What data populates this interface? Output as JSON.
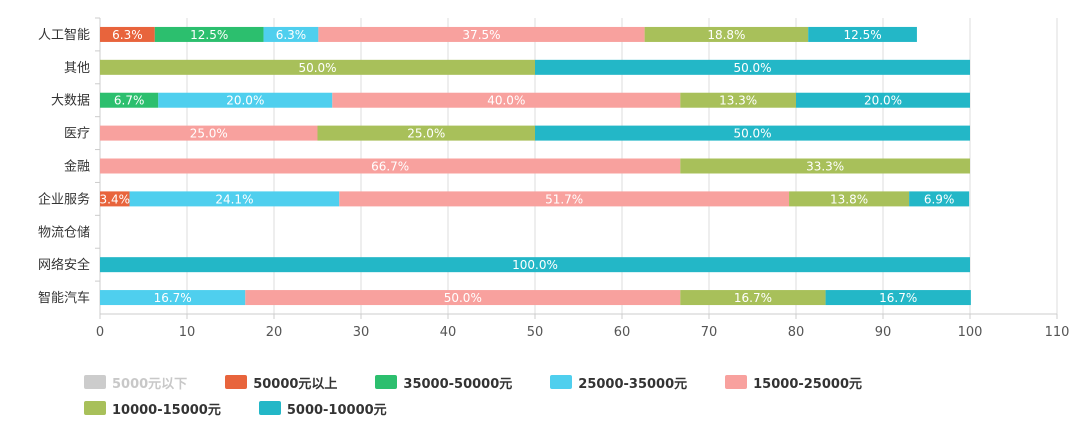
{
  "chart_data": {
    "type": "bar",
    "orientation": "horizontal",
    "stacked": true,
    "title": "",
    "xlabel": "",
    "ylabel": "",
    "xlim": [
      0,
      110
    ],
    "xticks": [
      0,
      10,
      20,
      30,
      40,
      50,
      60,
      70,
      80,
      90,
      100,
      110
    ],
    "grid": true,
    "legend_position": "bottom",
    "categories": [
      "人工智能",
      "其他",
      "大数据",
      "医疗",
      "金融",
      "企业服务",
      "物流仓储",
      "网络安全",
      "智能汽车"
    ],
    "series": [
      {
        "name": "5000元以下",
        "color": "#cccccc",
        "values": [
          0,
          0,
          0,
          0,
          0,
          0,
          0,
          0,
          0
        ]
      },
      {
        "name": "50000元以上",
        "color": "#e8643c",
        "values": [
          6.3,
          0,
          0,
          0,
          0,
          3.4,
          0,
          0,
          0
        ]
      },
      {
        "name": "35000-50000元",
        "color": "#2cbf6e",
        "values": [
          12.5,
          0,
          6.7,
          0,
          0,
          0,
          0,
          0,
          0
        ]
      },
      {
        "name": "25000-35000元",
        "color": "#4fcfee",
        "values": [
          6.3,
          0,
          20.0,
          0,
          0,
          24.1,
          0,
          0,
          16.7
        ]
      },
      {
        "name": "15000-25000元",
        "color": "#f8a19e",
        "values": [
          37.5,
          0,
          40.0,
          25.0,
          66.7,
          51.7,
          0,
          0,
          50.0
        ]
      },
      {
        "name": "10000-15000元",
        "color": "#a8c05a",
        "values": [
          18.8,
          50.0,
          13.3,
          25.0,
          33.3,
          13.8,
          0,
          0,
          16.7
        ]
      },
      {
        "name": "5000-10000元",
        "color": "#23b7c7",
        "values": [
          12.5,
          50.0,
          20.0,
          50.0,
          0,
          6.9,
          0,
          100.0,
          16.7
        ]
      }
    ],
    "legend_muted": [
      "5000元以下"
    ]
  }
}
